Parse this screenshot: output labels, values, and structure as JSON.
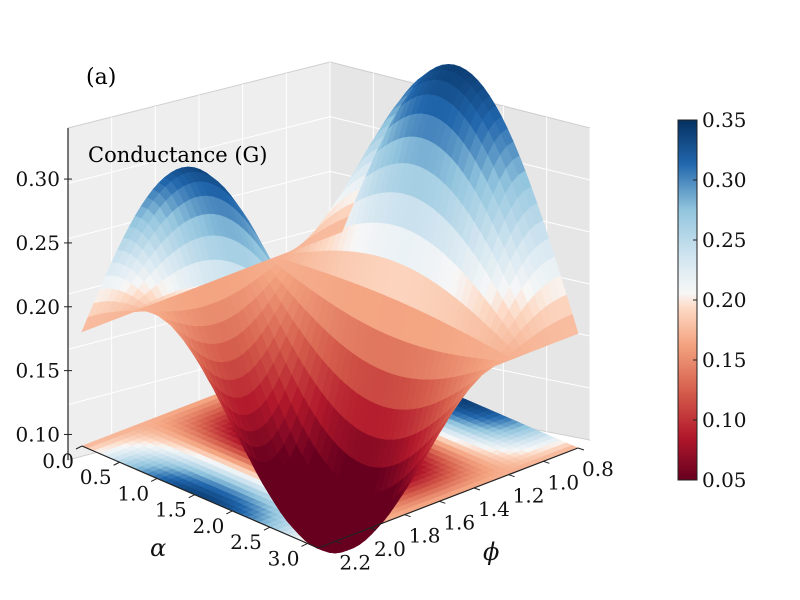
{
  "panel_label": "(a)",
  "chart_data": {
    "type": "surface3d",
    "title": "Conductance (G)",
    "xlabel": "α",
    "ylabel": "ϕ",
    "zlabel": "Conductance (G)",
    "x_ticks": [
      "0.0",
      "0.5",
      "1.0",
      "1.5",
      "2.0",
      "2.5",
      "3.0"
    ],
    "x_range": [
      0.0,
      3.14
    ],
    "y_ticks": [
      "0.8",
      "1.0",
      "1.2",
      "1.4",
      "1.6",
      "1.8",
      "2.0",
      "2.2"
    ],
    "y_range": [
      0.8,
      2.3
    ],
    "z_ticks": [
      "0.10",
      "0.15",
      "0.20",
      "0.25",
      "0.30"
    ],
    "z_range": [
      0.08,
      0.34
    ],
    "colormap": "RdBu",
    "colorbar": {
      "ticks": [
        "0.05",
        "0.10",
        "0.15",
        "0.20",
        "0.25",
        "0.30",
        "0.35"
      ],
      "range": [
        0.05,
        0.35
      ]
    },
    "surface_samples": [
      {
        "alpha": 0.0,
        "phi": 0.8,
        "G": 0.15
      },
      {
        "alpha": 1.57,
        "phi": 0.8,
        "G": 0.34
      },
      {
        "alpha": 3.14,
        "phi": 0.8,
        "G": 0.15
      },
      {
        "alpha": 1.57,
        "phi": 2.3,
        "G": 0.31
      },
      {
        "alpha": 1.57,
        "phi": 1.6,
        "G": 0.07
      },
      {
        "alpha": 0.0,
        "phi": 1.6,
        "G": 0.18
      }
    ],
    "contour_projection": true
  },
  "colors": {
    "pane": "#eeeeee",
    "grid": "#ffffff",
    "axis": "#222222"
  }
}
